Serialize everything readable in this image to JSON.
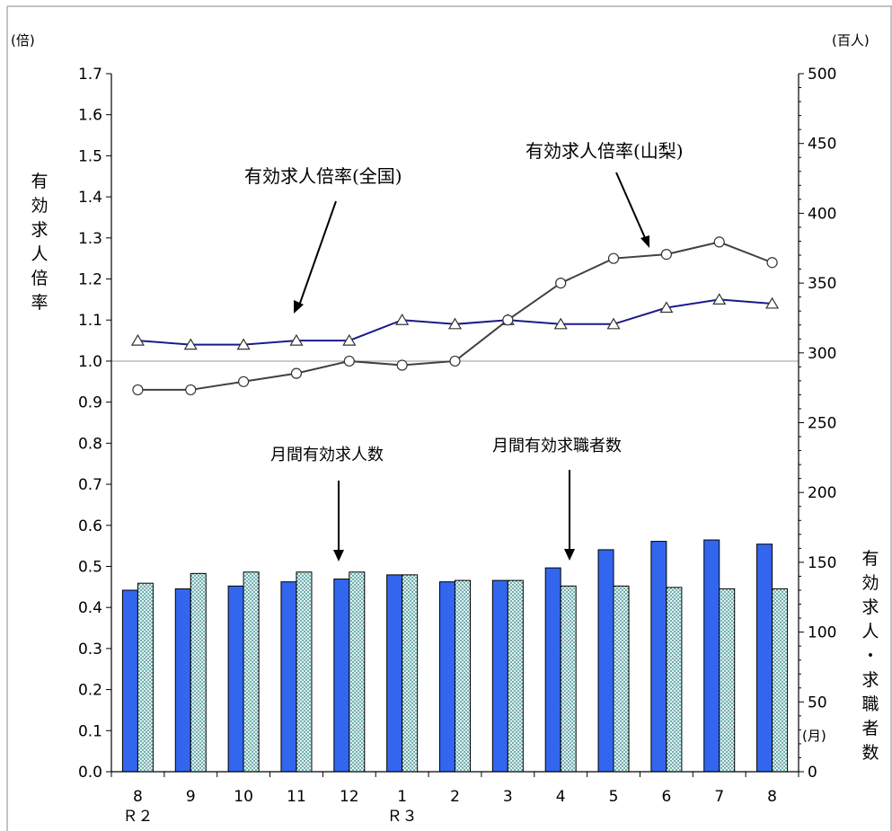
{
  "chart_data": {
    "type": "bar",
    "left_axis": {
      "unit": "(倍)",
      "label": "有効求人倍率",
      "ylim": [
        0.0,
        1.7
      ],
      "step": 0.1
    },
    "right_axis": {
      "unit": "(百人)",
      "label": "有効求人・求職者数",
      "ylim": [
        0,
        500
      ],
      "step": 50
    },
    "x_unit": "(月)",
    "categories": [
      "8",
      "9",
      "10",
      "11",
      "12",
      "1",
      "2",
      "3",
      "4",
      "5",
      "6",
      "7",
      "8"
    ],
    "era_labels": [
      {
        "text": "Ｒ２",
        "index": 0
      },
      {
        "text": "Ｒ３",
        "index": 5
      }
    ],
    "reference_line": 1.0,
    "bars": [
      {
        "name": "月間有効求人数",
        "axis": "right",
        "color": "#3366ee",
        "values": [
          130,
          131,
          133,
          136,
          138,
          141,
          136,
          137,
          146,
          159,
          165,
          166,
          163
        ]
      },
      {
        "name": "月間有効求職者数",
        "axis": "right",
        "color": "#ccffff",
        "values": [
          135,
          142,
          143,
          143,
          143,
          141,
          137,
          137,
          133,
          133,
          132,
          131,
          131
        ]
      }
    ],
    "lines": [
      {
        "name": "有効求人倍率(全国)",
        "axis": "left",
        "color": "#1a1a8c",
        "marker": "triangle",
        "values": [
          1.05,
          1.04,
          1.04,
          1.05,
          1.05,
          1.1,
          1.09,
          1.1,
          1.09,
          1.09,
          1.13,
          1.15,
          1.14
        ]
      },
      {
        "name": "有効求人倍率(山梨)",
        "axis": "left",
        "color": "#404040",
        "marker": "circle",
        "values": [
          0.93,
          0.93,
          0.95,
          0.97,
          1.0,
          0.99,
          1.0,
          1.1,
          1.19,
          1.25,
          1.26,
          1.29,
          1.24
        ]
      }
    ],
    "annotations": [
      {
        "text": "有効求人倍率(全国)"
      },
      {
        "text": "有効求人倍率(山梨)"
      },
      {
        "text": "月間有効求人数"
      },
      {
        "text": "月間有効求職者数"
      }
    ]
  }
}
